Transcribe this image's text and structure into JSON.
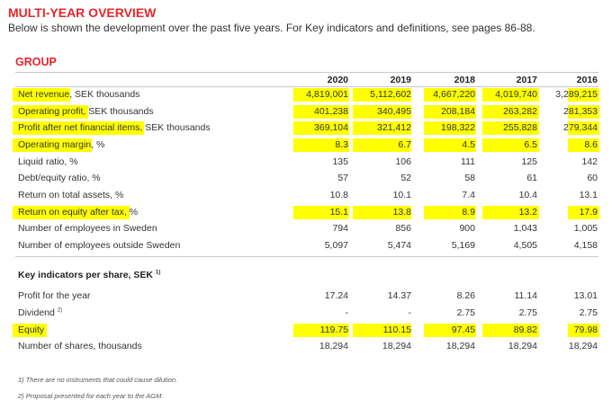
{
  "header": {
    "title": "MULTI-YEAR OVERVIEW",
    "subtitle": "Below is shown the development over the past five years. For Key indicators and definitions, see pages 86-88."
  },
  "group": {
    "section_title": "GROUP",
    "years": [
      "2020",
      "2019",
      "2018",
      "2017",
      "2016"
    ],
    "rows": [
      {
        "label": "Net revenue, SEK thousands",
        "values": [
          "4,819,001",
          "5,112,602",
          "4,667,220",
          "4,019,740",
          "3,289,215"
        ]
      },
      {
        "label": "Operating profit, SEK thousands",
        "values": [
          "401,238",
          "340,495",
          "208,184",
          "263,282",
          "281,353"
        ]
      },
      {
        "label": "Profit after net financial items, SEK thousands",
        "values": [
          "369,104",
          "321,412",
          "198,322",
          "255,828",
          "279,344"
        ]
      },
      {
        "label": "Operating margin, %",
        "values": [
          "8.3",
          "6.7",
          "4.5",
          "6.5",
          "8.6"
        ]
      },
      {
        "label": "Liquid ratio, %",
        "values": [
          "135",
          "106",
          "111",
          "125",
          "142"
        ]
      },
      {
        "label": "Debt/equity ratio, %",
        "values": [
          "57",
          "52",
          "58",
          "61",
          "60"
        ]
      },
      {
        "label": "Return on total assets, %",
        "values": [
          "10.8",
          "10.1",
          "7.4",
          "10.4",
          "13.1"
        ]
      },
      {
        "label": "Return on equity after tax, %",
        "values": [
          "15.1",
          "13.8",
          "8.9",
          "13.2",
          "17.9"
        ]
      },
      {
        "label": "Number of employees in Sweden",
        "values": [
          "794",
          "856",
          "900",
          "1,043",
          "1,005"
        ]
      },
      {
        "label": "Number of employees outside Sweden",
        "values": [
          "5,097",
          "5,474",
          "5,169",
          "4,505",
          "4,158"
        ]
      }
    ]
  },
  "per_share": {
    "title": "Key indicators per share, SEK",
    "title_note": "1)",
    "rows": [
      {
        "label": "Profit for the year",
        "note": "",
        "values": [
          "17.24",
          "14.37",
          "8.26",
          "11.14",
          "13.01"
        ]
      },
      {
        "label": "Dividend",
        "note": "2)",
        "values": [
          "-",
          "-",
          "2.75",
          "2.75",
          "2.75"
        ]
      },
      {
        "label": "Equity",
        "note": "",
        "values": [
          "119.75",
          "110.15",
          "97.45",
          "89.82",
          "79.98"
        ]
      },
      {
        "label": "Number of shares, thousands",
        "note": "",
        "values": [
          "18,294",
          "18,294",
          "18,294",
          "18,294",
          "18,294"
        ]
      }
    ]
  },
  "footnotes": [
    "1) There are no instruments that could cause dilution.",
    "2) Proposal presented for each year to the AGM."
  ],
  "colors": {
    "accent": "#e3262b",
    "highlight": "#ffff00"
  }
}
